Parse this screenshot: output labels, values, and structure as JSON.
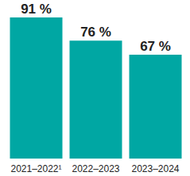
{
  "chart_data": {
    "type": "bar",
    "categories": [
      "2021–2022¹",
      "2022–2023",
      "2023–2024"
    ],
    "values": [
      91,
      76,
      67
    ],
    "value_labels": [
      "91 %",
      "76 %",
      "67 %"
    ],
    "color": "#00a7a3",
    "ylim": [
      0,
      91
    ],
    "data_labels": true,
    "tick_labels": "x",
    "grid": false
  }
}
